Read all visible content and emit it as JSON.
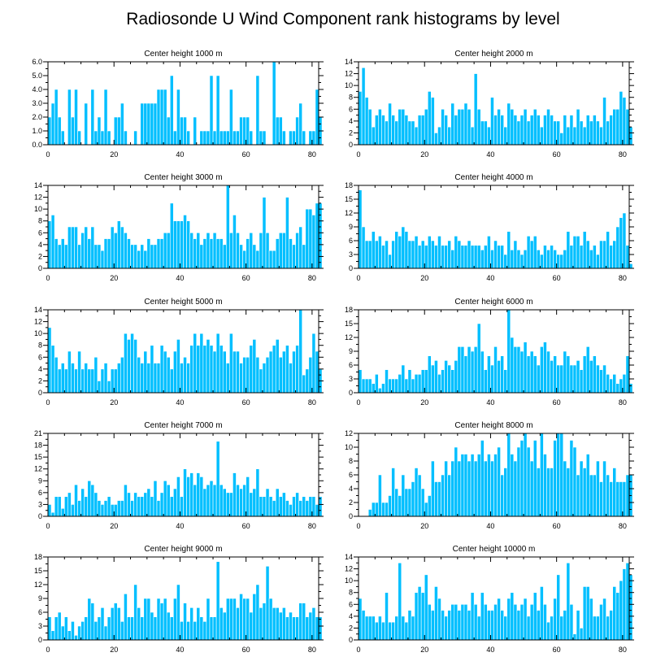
{
  "figure_title": "Radiosonde U Wind Component rank histograms by level",
  "colors": {
    "bar": "#00bfff",
    "bar_edge": "#ffffff",
    "axis": "#000000"
  },
  "chart_data": [
    {
      "type": "bar",
      "title": "Center height 1000 m",
      "xlim": [
        0,
        82
      ],
      "ylim": [
        0,
        6
      ],
      "xticks": [
        0,
        20,
        40,
        60,
        80
      ],
      "yticks": [
        0,
        1,
        2,
        3,
        4,
        5,
        6
      ],
      "ytick_labels": [
        "0.0",
        "1.0",
        "2.0",
        "3.0",
        "4.0",
        "5.0",
        "6.0"
      ],
      "values": [
        2,
        3,
        4,
        2,
        1,
        0,
        4,
        2,
        4,
        1,
        0,
        3,
        0,
        4,
        1,
        2,
        1,
        4,
        1,
        0,
        2,
        2,
        3,
        1,
        0,
        0,
        1,
        0,
        3,
        3,
        3,
        3,
        3,
        4,
        4,
        4,
        2,
        5,
        1,
        4,
        2,
        2,
        1,
        0,
        2,
        0,
        1,
        1,
        1,
        5,
        1,
        5,
        1,
        1,
        1,
        4,
        1,
        1,
        2,
        2,
        2,
        1,
        0,
        5,
        1,
        1,
        0,
        0,
        6,
        2,
        2,
        1,
        0,
        1,
        1,
        2,
        3,
        1,
        0,
        1,
        1,
        4,
        2
      ]
    },
    {
      "type": "bar",
      "title": "Center height 2000 m",
      "xlim": [
        0,
        82
      ],
      "ylim": [
        0,
        14
      ],
      "xticks": [
        0,
        20,
        40,
        60,
        80
      ],
      "yticks": [
        0,
        2,
        4,
        6,
        8,
        10,
        12,
        14
      ],
      "ytick_labels": [
        "0",
        "2",
        "4",
        "6",
        "8",
        "10",
        "12",
        "14"
      ],
      "values": [
        9,
        13,
        8,
        6,
        3,
        5,
        6,
        5,
        4,
        7,
        5,
        4,
        6,
        6,
        5,
        4,
        4,
        3,
        5,
        5,
        6,
        9,
        8,
        2,
        3,
        6,
        5,
        3,
        7,
        5,
        6,
        6,
        7,
        6,
        3,
        12,
        6,
        4,
        4,
        3,
        8,
        5,
        6,
        5,
        3,
        7,
        6,
        5,
        4,
        5,
        6,
        4,
        5,
        6,
        5,
        3,
        5,
        6,
        5,
        4,
        4,
        2,
        5,
        3,
        5,
        3,
        6,
        4,
        3,
        5,
        4,
        5,
        4,
        3,
        8,
        4,
        5,
        6,
        6,
        9,
        8,
        6,
        3
      ]
    },
    {
      "type": "bar",
      "title": "Center height 3000 m",
      "xlim": [
        0,
        82
      ],
      "ylim": [
        0,
        14
      ],
      "xticks": [
        0,
        20,
        40,
        60,
        80
      ],
      "yticks": [
        0,
        2,
        4,
        6,
        8,
        10,
        12,
        14
      ],
      "ytick_labels": [
        "0",
        "2",
        "4",
        "6",
        "8",
        "10",
        "12",
        "14"
      ],
      "values": [
        8,
        9,
        5,
        4,
        5,
        4,
        7,
        7,
        7,
        4,
        6,
        7,
        5,
        7,
        4,
        4,
        3,
        5,
        5,
        7,
        6,
        8,
        7,
        6,
        5,
        4,
        4,
        3,
        4,
        3,
        5,
        4,
        4,
        5,
        5,
        6,
        6,
        11,
        8,
        8,
        8,
        9,
        8,
        6,
        5,
        6,
        4,
        5,
        6,
        5,
        6,
        5,
        5,
        4,
        14,
        6,
        9,
        6,
        4,
        3,
        5,
        6,
        4,
        3,
        6,
        12,
        6,
        3,
        3,
        5,
        6,
        6,
        12,
        5,
        4,
        6,
        7,
        4,
        10,
        10,
        9,
        11,
        11
      ]
    },
    {
      "type": "bar",
      "title": "Center height 4000 m",
      "xlim": [
        0,
        82
      ],
      "ylim": [
        0,
        18
      ],
      "xticks": [
        0,
        20,
        40,
        60,
        80
      ],
      "yticks": [
        0,
        3,
        6,
        9,
        12,
        15,
        18
      ],
      "ytick_labels": [
        "0",
        "3",
        "6",
        "9",
        "12",
        "15",
        "18"
      ],
      "values": [
        17,
        9,
        6,
        6,
        8,
        6,
        7,
        5,
        6,
        3,
        6,
        8,
        7,
        9,
        8,
        6,
        6,
        7,
        5,
        6,
        5,
        7,
        6,
        5,
        7,
        5,
        5,
        6,
        4,
        7,
        6,
        5,
        5,
        6,
        5,
        5,
        5,
        4,
        5,
        7,
        4,
        6,
        5,
        5,
        3,
        8,
        4,
        6,
        4,
        3,
        4,
        7,
        6,
        7,
        4,
        3,
        5,
        4,
        5,
        4,
        3,
        3,
        4,
        8,
        5,
        7,
        7,
        5,
        8,
        6,
        4,
        5,
        3,
        6,
        6,
        8,
        5,
        6,
        9,
        11,
        12,
        5,
        1
      ]
    },
    {
      "type": "bar",
      "title": "Center height 5000 m",
      "xlim": [
        0,
        82
      ],
      "ylim": [
        0,
        14
      ],
      "xticks": [
        0,
        20,
        40,
        60,
        80
      ],
      "yticks": [
        0,
        2,
        4,
        6,
        8,
        10,
        12,
        14
      ],
      "ytick_labels": [
        "0",
        "2",
        "4",
        "6",
        "8",
        "10",
        "12",
        "14"
      ],
      "values": [
        11,
        8,
        6,
        4,
        5,
        4,
        7,
        5,
        4,
        7,
        4,
        5,
        4,
        4,
        6,
        2,
        4,
        5,
        2,
        4,
        4,
        5,
        6,
        10,
        9,
        10,
        9,
        6,
        5,
        7,
        5,
        8,
        5,
        5,
        8,
        7,
        6,
        4,
        7,
        9,
        5,
        6,
        5,
        8,
        10,
        8,
        10,
        8,
        9,
        8,
        7,
        10,
        8,
        7,
        5,
        10,
        7,
        7,
        5,
        6,
        6,
        8,
        9,
        6,
        4,
        5,
        6,
        7,
        8,
        9,
        6,
        7,
        8,
        5,
        7,
        8,
        14,
        3,
        4,
        6,
        10,
        7,
        4
      ]
    },
    {
      "type": "bar",
      "title": "Center height 6000 m",
      "xlim": [
        0,
        82
      ],
      "ylim": [
        0,
        18
      ],
      "xticks": [
        0,
        20,
        40,
        60,
        80
      ],
      "yticks": [
        0,
        3,
        6,
        9,
        12,
        15,
        18
      ],
      "ytick_labels": [
        "0",
        "3",
        "6",
        "9",
        "12",
        "15",
        "18"
      ],
      "values": [
        5,
        3,
        3,
        3,
        2,
        4,
        1,
        2,
        5,
        3,
        3,
        3,
        4,
        6,
        3,
        5,
        3,
        4,
        4,
        5,
        5,
        8,
        6,
        7,
        4,
        5,
        7,
        6,
        5,
        7,
        10,
        10,
        8,
        10,
        9,
        10,
        15,
        9,
        5,
        8,
        6,
        10,
        7,
        8,
        5,
        18,
        12,
        10,
        10,
        9,
        11,
        8,
        9,
        8,
        6,
        10,
        11,
        9,
        7,
        8,
        6,
        6,
        9,
        8,
        6,
        6,
        7,
        5,
        8,
        10,
        7,
        8,
        6,
        5,
        6,
        4,
        3,
        4,
        2,
        3,
        4,
        8,
        2
      ]
    },
    {
      "type": "bar",
      "title": "Center height 7000 m",
      "xlim": [
        0,
        82
      ],
      "ylim": [
        0,
        21
      ],
      "xticks": [
        0,
        20,
        40,
        60,
        80
      ],
      "yticks": [
        0,
        3,
        6,
        9,
        12,
        15,
        18,
        21
      ],
      "ytick_labels": [
        "0",
        "3",
        "6",
        "9",
        "12",
        "15",
        "18",
        "21"
      ],
      "values": [
        3,
        1,
        5,
        5,
        2,
        5,
        6,
        3,
        8,
        4,
        7,
        5,
        9,
        8,
        6,
        4,
        3,
        4,
        5,
        3,
        3,
        4,
        4,
        8,
        6,
        4,
        6,
        5,
        5,
        6,
        7,
        5,
        9,
        4,
        6,
        9,
        8,
        5,
        7,
        10,
        5,
        12,
        10,
        11,
        8,
        11,
        10,
        7,
        8,
        9,
        8,
        19,
        8,
        7,
        6,
        6,
        11,
        8,
        7,
        8,
        10,
        6,
        7,
        12,
        5,
        5,
        7,
        5,
        4,
        7,
        5,
        6,
        4,
        3,
        5,
        6,
        4,
        5,
        4,
        5,
        5,
        3,
        5
      ]
    },
    {
      "type": "bar",
      "title": "Center height 8000 m",
      "xlim": [
        0,
        82
      ],
      "ylim": [
        0,
        12
      ],
      "xticks": [
        0,
        20,
        40,
        60,
        80
      ],
      "yticks": [
        0,
        2,
        4,
        6,
        8,
        10,
        12
      ],
      "ytick_labels": [
        "0",
        "2",
        "4",
        "6",
        "8",
        "10",
        "12"
      ],
      "values": [
        0,
        0,
        0,
        1,
        2,
        2,
        6,
        2,
        2,
        3,
        7,
        4,
        3,
        6,
        4,
        4,
        5,
        7,
        6,
        4,
        2,
        3,
        8,
        5,
        5,
        6,
        8,
        6,
        8,
        10,
        8,
        9,
        9,
        8,
        9,
        8,
        9,
        11,
        8,
        9,
        8,
        9,
        10,
        6,
        7,
        12,
        9,
        8,
        10,
        11,
        12,
        10,
        8,
        11,
        7,
        12,
        9,
        7,
        7,
        11,
        12,
        12,
        8,
        7,
        11,
        10,
        6,
        8,
        7,
        9,
        6,
        6,
        8,
        5,
        8,
        6,
        5,
        7,
        5,
        5,
        5,
        6,
        6
      ]
    },
    {
      "type": "bar",
      "title": "Center height 9000 m",
      "xlim": [
        0,
        82
      ],
      "ylim": [
        0,
        18
      ],
      "xticks": [
        0,
        20,
        40,
        60,
        80
      ],
      "yticks": [
        0,
        3,
        6,
        9,
        12,
        15,
        18
      ],
      "ytick_labels": [
        "0",
        "3",
        "6",
        "9",
        "12",
        "15",
        "18"
      ],
      "values": [
        5,
        2,
        5,
        6,
        3,
        5,
        2,
        4,
        1,
        3,
        4,
        5,
        9,
        8,
        4,
        5,
        7,
        3,
        5,
        7,
        8,
        7,
        4,
        10,
        5,
        5,
        12,
        7,
        5,
        9,
        9,
        6,
        5,
        9,
        8,
        9,
        6,
        5,
        9,
        12,
        4,
        8,
        4,
        7,
        4,
        7,
        5,
        4,
        9,
        5,
        5,
        17,
        7,
        6,
        9,
        9,
        9,
        7,
        10,
        9,
        9,
        6,
        10,
        12,
        7,
        8,
        16,
        9,
        7,
        7,
        6,
        7,
        5,
        6,
        5,
        5,
        8,
        8,
        5,
        6,
        7,
        5,
        5
      ]
    },
    {
      "type": "bar",
      "title": "Center height 10000 m",
      "xlim": [
        0,
        82
      ],
      "ylim": [
        0,
        14
      ],
      "xticks": [
        0,
        20,
        40,
        60,
        80
      ],
      "yticks": [
        0,
        2,
        4,
        6,
        8,
        10,
        12,
        14
      ],
      "ytick_labels": [
        "0",
        "2",
        "4",
        "6",
        "8",
        "10",
        "12",
        "14"
      ],
      "values": [
        7,
        5,
        4,
        4,
        4,
        3,
        4,
        3,
        8,
        3,
        3,
        4,
        13,
        4,
        3,
        5,
        4,
        8,
        9,
        8,
        11,
        6,
        5,
        9,
        7,
        5,
        4,
        5,
        6,
        6,
        5,
        6,
        6,
        5,
        8,
        6,
        4,
        8,
        6,
        5,
        5,
        6,
        7,
        5,
        4,
        7,
        8,
        6,
        5,
        6,
        7,
        4,
        6,
        8,
        5,
        9,
        6,
        3,
        4,
        7,
        11,
        4,
        5,
        13,
        6,
        1,
        5,
        2,
        9,
        9,
        7,
        4,
        4,
        6,
        7,
        4,
        5,
        9,
        8,
        10,
        12,
        13,
        11
      ]
    }
  ]
}
